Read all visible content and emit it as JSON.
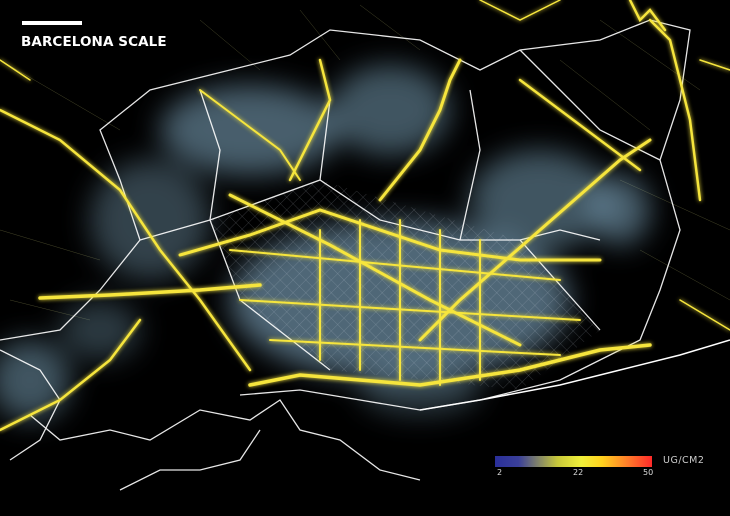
{
  "title": "BARCELONA SCALE",
  "legend": {
    "unit": "UG/CM2",
    "ticks": [
      "2",
      "22",
      "50"
    ],
    "colors": [
      "#2a2f9a",
      "#e6e63a",
      "#ffd21e",
      "#ff2a2a"
    ]
  },
  "colors": {
    "background": "#000000",
    "roads": "#f5e33a",
    "boundaries": "#ffffff",
    "concentration_haze": "#9cc8e0"
  }
}
